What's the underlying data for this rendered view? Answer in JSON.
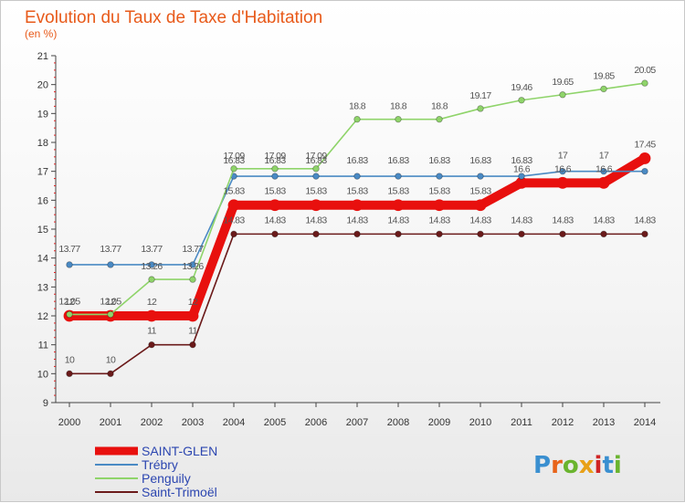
{
  "chart_data": {
    "type": "line",
    "title": "Evolution du Taux de Taxe d'Habitation",
    "subtitle": "(en %)",
    "xlabel": "",
    "ylabel": "",
    "x": [
      "2000",
      "2001",
      "2002",
      "2003",
      "2004",
      "2005",
      "2006",
      "2007",
      "2008",
      "2009",
      "2010",
      "2011",
      "2012",
      "2013",
      "2014"
    ],
    "ylim": [
      9,
      21
    ],
    "yticks": [
      "9",
      "10",
      "11",
      "12",
      "13",
      "14",
      "15",
      "16",
      "17",
      "18",
      "19",
      "20",
      "21"
    ],
    "grid": false,
    "legend_position": "bottom-left",
    "series": [
      {
        "name": "SAINT-GLEN",
        "color": "#e8100e",
        "values": [
          12,
          12,
          12,
          12,
          15.83,
          15.83,
          15.83,
          15.83,
          15.83,
          15.83,
          15.83,
          16.6,
          16.6,
          16.6,
          17.45
        ],
        "labels": [
          "12",
          "12",
          "12",
          "12",
          "15.83",
          "15.83",
          "15.83",
          "15.83",
          "15.83",
          "15.83",
          "15.83",
          "16.6",
          "16.6",
          "16.6",
          "17.45"
        ]
      },
      {
        "name": "Trébry",
        "color": "#4a8ac4",
        "values": [
          13.77,
          13.77,
          13.77,
          13.77,
          16.83,
          16.83,
          16.83,
          16.83,
          16.83,
          16.83,
          16.83,
          16.83,
          17,
          17,
          17
        ],
        "labels": [
          "13.77",
          "13.77",
          "13.77",
          "13.77",
          "16.83",
          "16.83",
          "16.83",
          "16.83",
          "16.83",
          "16.83",
          "16.83",
          "16.83",
          "17",
          "17",
          ""
        ]
      },
      {
        "name": "Penguily",
        "color": "#8fd46a",
        "values": [
          12.05,
          12.05,
          13.26,
          13.26,
          17.09,
          17.09,
          17.09,
          18.8,
          18.8,
          18.8,
          19.17,
          19.46,
          19.65,
          19.85,
          20.05
        ],
        "labels": [
          "12.05",
          "12.05",
          "13.26",
          "13.26",
          "17.09",
          "17.09",
          "17.09",
          "18.8",
          "18.8",
          "18.8",
          "19.17",
          "19.46",
          "19.65",
          "19.85",
          "20.05"
        ]
      },
      {
        "name": "Saint-Trimoël",
        "color": "#6b1a1a",
        "values": [
          10,
          10,
          11,
          11,
          14.83,
          14.83,
          14.83,
          14.83,
          14.83,
          14.83,
          14.83,
          14.83,
          14.83,
          14.83,
          14.83
        ],
        "labels": [
          "10",
          "10",
          "11",
          "11",
          "14.83",
          "14.83",
          "14.83",
          "14.83",
          "14.83",
          "14.83",
          "14.83",
          "14.83",
          "14.83",
          "14.83",
          "14.83"
        ]
      }
    ]
  },
  "brand": {
    "text": "Proxiti",
    "letters": [
      "P",
      "r",
      "o",
      "x",
      "i",
      "t",
      "i"
    ],
    "colors": [
      "#3a8fd0",
      "#e8641a",
      "#6ab42e",
      "#e8a018",
      "#d02424",
      "#3a8fd0",
      "#6ab42e"
    ]
  }
}
